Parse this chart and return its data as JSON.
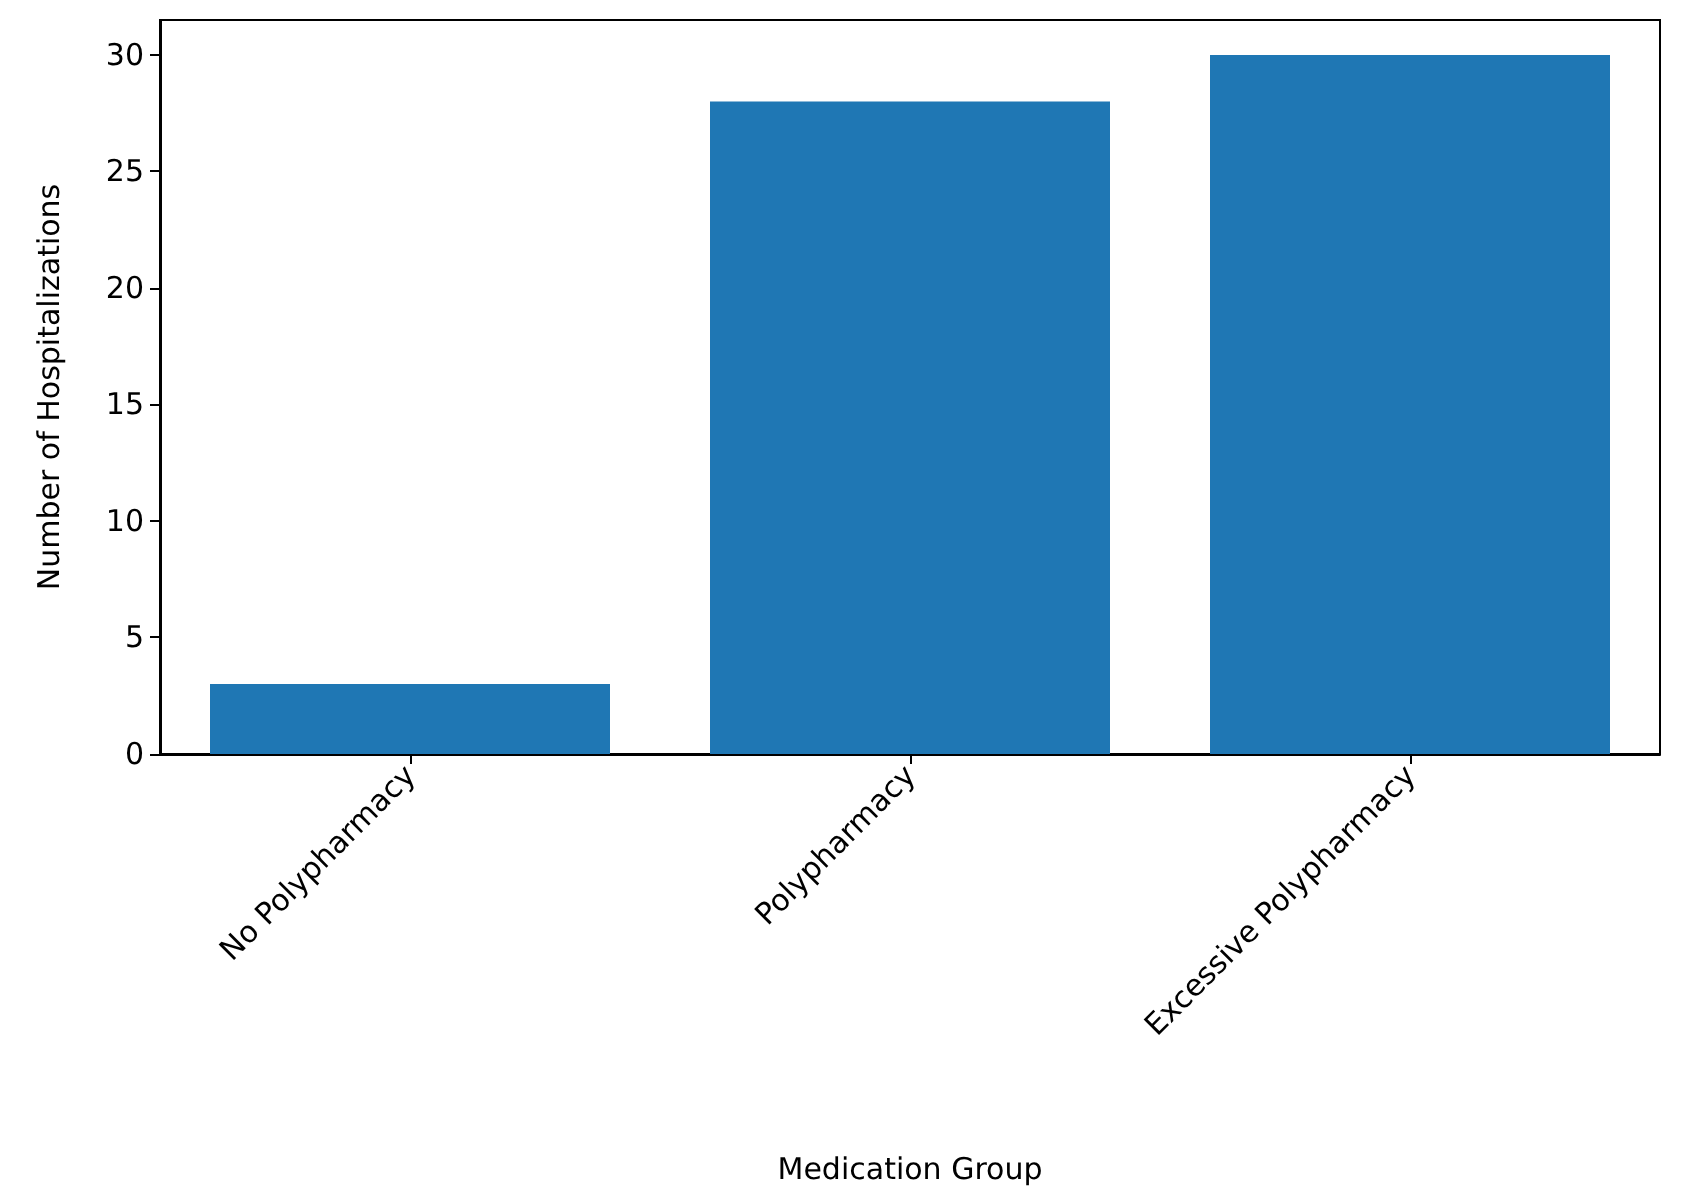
{
  "chart_data": {
    "type": "bar",
    "xlabel": "Medication Group",
    "ylabel": "Number of Hospitalizations",
    "categories": [
      "No Polypharmacy",
      "Polypharmacy",
      "Excessive Polypharmacy"
    ],
    "values": [
      3,
      28,
      30
    ],
    "color": "#1f77b4",
    "ylim": [
      0,
      31.5
    ],
    "yticks": [
      0,
      5,
      10,
      15,
      20,
      25,
      30
    ],
    "grid": false
  }
}
